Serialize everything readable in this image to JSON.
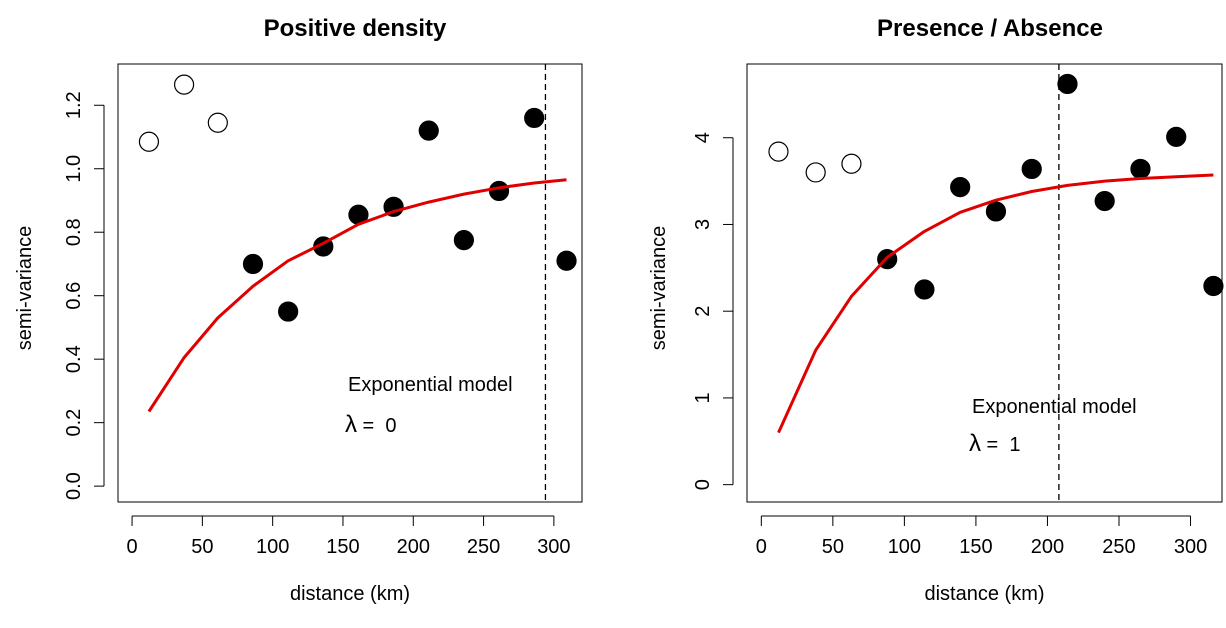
{
  "chart_data": [
    {
      "type": "scatter",
      "title": "Positive density",
      "xlabel": "distance  (km)",
      "ylabel": "semi-variance",
      "xlim": [
        -10,
        320
      ],
      "ylim": [
        -0.05,
        1.33
      ],
      "xticks": [
        0,
        50,
        100,
        150,
        200,
        250,
        300
      ],
      "xtick_labels": [
        "0",
        "50",
        "100",
        "150",
        "200",
        "250",
        "300"
      ],
      "yticks": [
        0.0,
        0.2,
        0.4,
        0.6,
        0.8,
        1.0,
        1.2
      ],
      "ytick_labels": [
        "0.0",
        "0.2",
        "0.4",
        "0.6",
        "0.8",
        "1.0",
        "1.2"
      ],
      "series": [
        {
          "marker": "open-circle",
          "x": [
            12,
            37,
            61
          ],
          "y": [
            1.085,
            1.265,
            1.145
          ]
        },
        {
          "marker": "filled-circle",
          "x": [
            86,
            111,
            136,
            161,
            186,
            211,
            236,
            261,
            286,
            309
          ],
          "y": [
            0.7,
            0.55,
            0.755,
            0.855,
            0.88,
            1.12,
            0.775,
            0.93,
            1.16,
            0.71
          ]
        },
        {
          "marker": "line",
          "color": "#e00000",
          "x": [
            12,
            37,
            61,
            86,
            111,
            136,
            161,
            186,
            211,
            236,
            261,
            286,
            309
          ],
          "y": [
            0.235,
            0.405,
            0.53,
            0.63,
            0.71,
            0.765,
            0.825,
            0.865,
            0.895,
            0.92,
            0.94,
            0.955,
            0.965
          ]
        }
      ],
      "vline": {
        "x": 294,
        "style": "dashed"
      },
      "annotation": {
        "text": "Exponential model",
        "lambda_symbol": "λ",
        "lambda_text": " =  0"
      }
    },
    {
      "type": "scatter",
      "title": "Presence / Absence",
      "xlabel": "distance  (km)",
      "ylabel": "semi-variance",
      "xlim": [
        -10,
        322
      ],
      "ylim": [
        -0.2,
        4.85
      ],
      "xticks": [
        0,
        50,
        100,
        150,
        200,
        250,
        300
      ],
      "xtick_labels": [
        "0",
        "50",
        "100",
        "150",
        "200",
        "250",
        "300"
      ],
      "yticks": [
        0,
        1,
        2,
        3,
        4
      ],
      "ytick_labels": [
        "0",
        "1",
        "2",
        "3",
        "4"
      ],
      "series": [
        {
          "marker": "open-circle",
          "x": [
            12,
            38,
            63
          ],
          "y": [
            3.84,
            3.6,
            3.7
          ]
        },
        {
          "marker": "filled-circle",
          "x": [
            88,
            114,
            139,
            164,
            189,
            214,
            240,
            265,
            290,
            316
          ],
          "y": [
            2.6,
            2.25,
            3.43,
            3.15,
            3.64,
            4.62,
            3.27,
            3.64,
            4.01,
            2.29
          ]
        },
        {
          "marker": "line",
          "color": "#e00000",
          "x": [
            12,
            38,
            63,
            88,
            114,
            139,
            164,
            189,
            214,
            240,
            265,
            290,
            316
          ],
          "y": [
            0.6,
            1.55,
            2.17,
            2.62,
            2.92,
            3.14,
            3.28,
            3.38,
            3.45,
            3.5,
            3.53,
            3.55,
            3.57
          ]
        }
      ],
      "vline": {
        "x": 208,
        "style": "dashed"
      },
      "annotation": {
        "text": "Exponential model",
        "lambda_symbol": "λ",
        "lambda_text": " =  1"
      }
    }
  ]
}
